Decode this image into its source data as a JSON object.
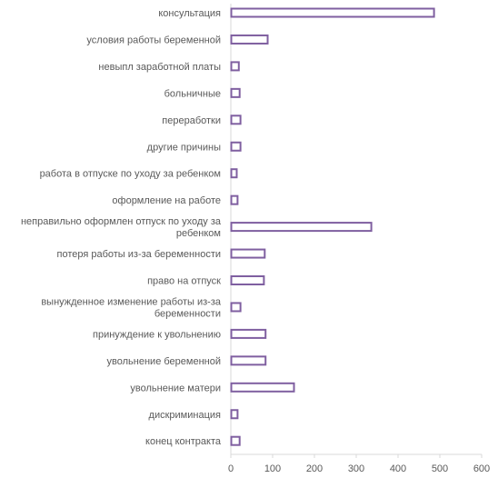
{
  "chart_data": {
    "type": "bar",
    "orientation": "horizontal",
    "categories": [
      "консультация",
      "условия работы беременной",
      "невыпл заработной платы",
      "больничные",
      "переработки",
      "другие причины",
      "работа в отпуске по уходу за ребенком",
      "оформление на работе",
      "неправильно оформлен отпуск по уходу за ребенком",
      "потеря работы из-за беременности",
      "право на отпуск",
      "вынужденное изменение работы из-за беременности",
      "принуждение к увольнению",
      "увольнение беременной",
      "увольнение матери",
      "дискриминация",
      "конец контракта"
    ],
    "values": [
      485,
      87,
      18,
      20,
      22,
      22,
      13,
      15,
      335,
      80,
      78,
      22,
      82,
      82,
      150,
      15,
      20
    ],
    "xlim": [
      0,
      600
    ],
    "xticks": [
      0,
      100,
      200,
      300,
      400,
      500,
      600
    ],
    "bar_fill": "#ffffff",
    "bar_stroke": "#7f5fa0",
    "axis_color": "#d9d9d9",
    "text_color": "#595959",
    "grid": false,
    "legend": "none"
  }
}
